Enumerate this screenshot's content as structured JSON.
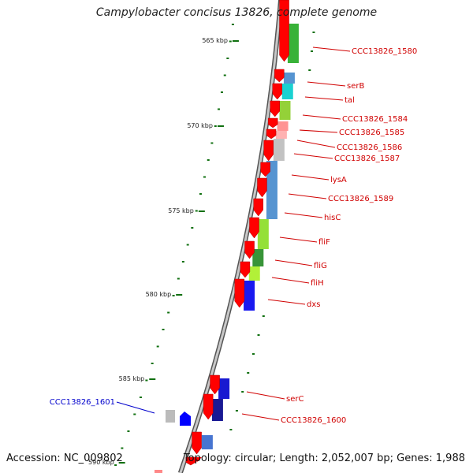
{
  "title": "Campylobacter concisus 13826, complete genome",
  "footer": {
    "accession": "Accession: NC_009802",
    "stats": "Topology: circular; Length: 2,052,007 bp; Genes: 1,988"
  },
  "colors": {
    "backbone": "#8a8a8a",
    "gene_forward": "#ff0000",
    "gene_reverse": "#0000ff",
    "label_forward": "#d00000",
    "label_reverse": "#0000cc",
    "tick": "#107010"
  },
  "scale_labels": [
    "565 kbp",
    "570 kbp",
    "575 kbp",
    "580 kbp",
    "585 kbp",
    "590 kbp"
  ],
  "gene_labels": [
    {
      "text": "CCC13826_1580",
      "strand": "+"
    },
    {
      "text": "serB",
      "strand": "+"
    },
    {
      "text": "tal",
      "strand": "+"
    },
    {
      "text": "CCC13826_1584",
      "strand": "+"
    },
    {
      "text": "CCC13826_1585",
      "strand": "+"
    },
    {
      "text": "CCC13826_1586",
      "strand": "+"
    },
    {
      "text": "CCC13826_1587",
      "strand": "+"
    },
    {
      "text": "lysA",
      "strand": "+"
    },
    {
      "text": "CCC13826_1589",
      "strand": "+"
    },
    {
      "text": "hisC",
      "strand": "+"
    },
    {
      "text": "fliF",
      "strand": "+"
    },
    {
      "text": "fliG",
      "strand": "+"
    },
    {
      "text": "fliH",
      "strand": "+"
    },
    {
      "text": "dxs",
      "strand": "+"
    },
    {
      "text": "serC",
      "strand": "+"
    },
    {
      "text": "CCC13826_1600",
      "strand": "+"
    },
    {
      "text": "CCC13826_1601",
      "strand": "-"
    }
  ]
}
